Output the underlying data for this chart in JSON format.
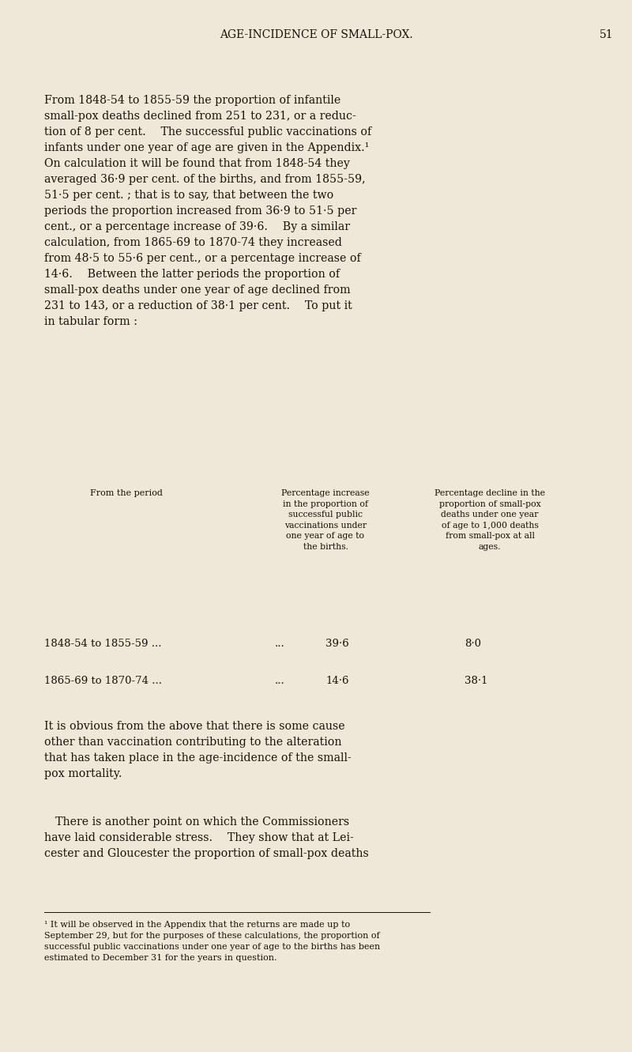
{
  "bg_color": "#ede8d8",
  "text_color": "#1a1008",
  "page_width": 8.0,
  "page_height": 13.31,
  "header_title": "AGE-INCIDENCE OF SMALL-POX.",
  "header_page": "51",
  "table_col2_header": "Percentage increase\nin the proportion of\nsuccessful public\nvaccinations under\none year of age to\nthe births.",
  "table_col3_header": "Percentage decline in the\nproportion of small-pox\ndeaths under one year\nof age to 1,000 deaths\nfrom small-pox at all\nages.",
  "table_rows": [
    [
      "1848-54 to 1855-59 ...",
      "...",
      "39·6",
      "8·0"
    ],
    [
      "1865-69 to 1870-74 ...",
      "...",
      "14·6",
      "38·1"
    ]
  ]
}
